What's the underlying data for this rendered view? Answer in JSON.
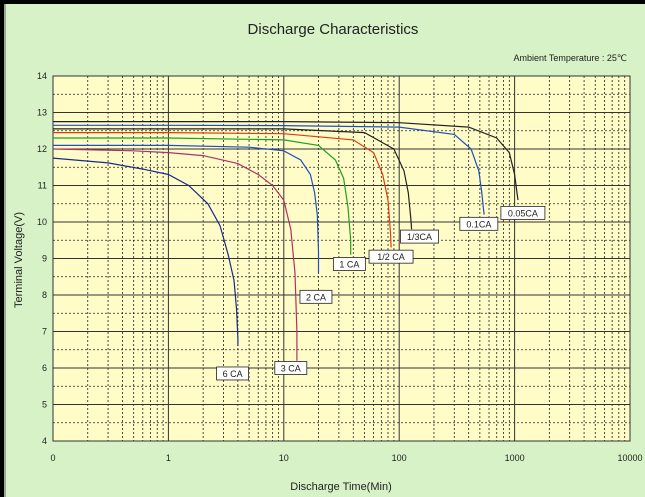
{
  "chart_data": {
    "type": "line",
    "title": "Discharge Characteristics",
    "subtitle": "Ambient Temperature : 25℃",
    "xlabel": "Discharge Time(Min)",
    "ylabel": "Terminal Voltage(V)",
    "x_scale": "log",
    "xlim": [
      0,
      10000
    ],
    "ylim": [
      4,
      14
    ],
    "x_ticks": [
      "0",
      "1",
      "10",
      "100",
      "1000",
      "10000"
    ],
    "x_tick_values": [
      0.1,
      1,
      10,
      100,
      1000,
      10000
    ],
    "y_ticks": [
      "4",
      "5",
      "6",
      "7",
      "8",
      "9",
      "10",
      "11",
      "12",
      "13",
      "14"
    ],
    "grid": true,
    "series": [
      {
        "name": "6 CA",
        "color": "#1a2a8a",
        "x": [
          0.1,
          0.3,
          0.6,
          1,
          1.5,
          2.2,
          2.8,
          3.3,
          3.7,
          3.9,
          4.0,
          4.0
        ],
        "y": [
          11.75,
          11.62,
          11.45,
          11.3,
          11.0,
          10.5,
          9.9,
          9.1,
          8.4,
          7.6,
          6.8,
          6.6
        ]
      },
      {
        "name": "3 CA",
        "color": "#b0306a",
        "x": [
          0.1,
          0.5,
          1,
          2,
          4,
          6,
          8,
          10,
          11.5,
          12.5,
          13,
          13
        ],
        "y": [
          12.0,
          11.95,
          11.9,
          11.82,
          11.6,
          11.3,
          11.0,
          10.6,
          9.8,
          8.6,
          7.0,
          6.2
        ]
      },
      {
        "name": "2 CA",
        "color": "#2050c0",
        "x": [
          0.1,
          1,
          5,
          10,
          14,
          17,
          18.5,
          19.5,
          20,
          20
        ],
        "y": [
          12.1,
          12.1,
          12.05,
          11.95,
          11.7,
          11.3,
          10.8,
          10.2,
          9.2,
          8.6
        ]
      },
      {
        "name": "1 CA",
        "color": "#20a020",
        "x": [
          0.1,
          1,
          10,
          20,
          28,
          33,
          36,
          38,
          38
        ],
        "y": [
          12.3,
          12.3,
          12.25,
          12.1,
          11.7,
          11.2,
          10.4,
          9.5,
          9.1
        ]
      },
      {
        "name": "1/2 CA",
        "color": "#e03a10",
        "x": [
          0.1,
          1,
          10,
          40,
          60,
          72,
          80,
          84,
          85
        ],
        "y": [
          12.45,
          12.45,
          12.42,
          12.25,
          11.9,
          11.3,
          10.6,
          9.7,
          9.3
        ]
      },
      {
        "name": "1/3CA",
        "color": "#222222",
        "x": [
          0.1,
          1,
          10,
          50,
          90,
          110,
          120,
          126,
          128
        ],
        "y": [
          12.55,
          12.55,
          12.55,
          12.45,
          12.0,
          11.4,
          10.8,
          10.1,
          9.8
        ]
      },
      {
        "name": "0.1CA",
        "color": "#2050c0",
        "x": [
          0.1,
          1,
          10,
          100,
          300,
          420,
          490,
          520,
          540,
          545
        ],
        "y": [
          12.65,
          12.65,
          12.64,
          12.6,
          12.4,
          12.0,
          11.4,
          10.8,
          10.3,
          10.2
        ]
      },
      {
        "name": "0.05CA",
        "color": "#222222",
        "x": [
          0.1,
          1,
          10,
          100,
          400,
          700,
          900,
          1000,
          1050,
          1070
        ],
        "y": [
          12.75,
          12.75,
          12.75,
          12.72,
          12.6,
          12.3,
          11.9,
          11.3,
          10.8,
          10.6
        ]
      }
    ],
    "labels": [
      {
        "text": "6 CA",
        "x": 3.6,
        "y": 5.85
      },
      {
        "text": "3 CA",
        "x": 11.5,
        "y": 6.0
      },
      {
        "text": "2 CA",
        "x": 19,
        "y": 7.95
      },
      {
        "text": "1 CA",
        "x": 37,
        "y": 8.85
      },
      {
        "text": "1/2 CA",
        "x": 85,
        "y": 9.05
      },
      {
        "text": "1/3CA",
        "x": 150,
        "y": 9.6
      },
      {
        "text": "0.1CA",
        "x": 490,
        "y": 9.95
      },
      {
        "text": "0.05CA",
        "x": 1180,
        "y": 10.25
      }
    ]
  }
}
